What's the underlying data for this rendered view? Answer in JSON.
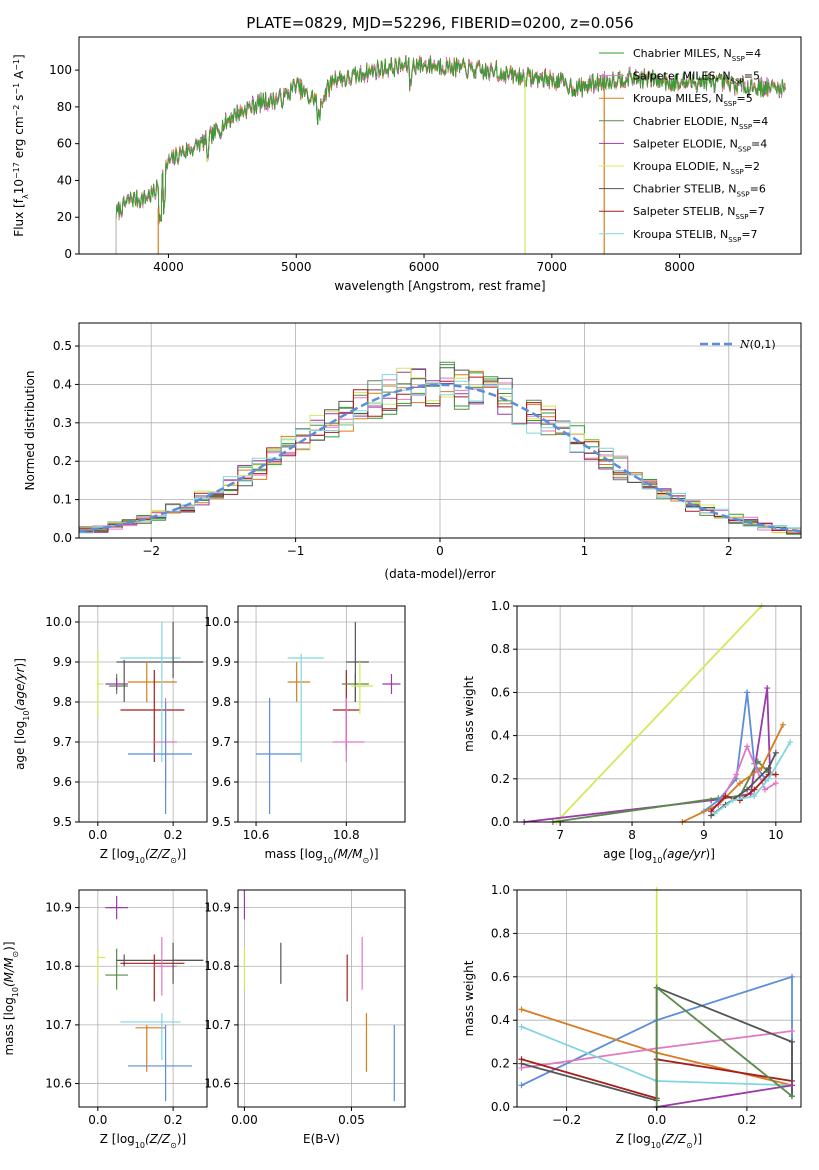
{
  "figure": {
    "title": "PLATE=0829, MJD=52296, FIBERID=0200, z=0.056"
  },
  "colors": {
    "chabrier_miles": "#2ca02c",
    "salpeter_miles": "#e377c2",
    "kroupa_miles": "#d97c1f",
    "chabrier_elodie": "#5a8a4a",
    "salpeter_elodie": "#9b3aa9",
    "kroupa_elodie": "#d4e85c",
    "chabrier_stelib": "#555555",
    "salpeter_stelib": "#a51f1f",
    "kroupa_stelib": "#7fd6e0",
    "blue": "#5b8ddb",
    "normal_curve": "#5b8ddb"
  },
  "chart_data": [
    {
      "id": "spectrum",
      "type": "line",
      "title": "PLATE=0829, MJD=52296, FIBERID=0200, z=0.056",
      "xlabel": "wavelength [Angstrom, rest frame]",
      "ylabel": "Flux [f_λ 10^-17 erg cm^-2 s^-1 A^-1]",
      "xlim": [
        3300,
        8950
      ],
      "ylim": [
        0,
        118
      ],
      "xticks": [
        4000,
        5000,
        6000,
        7000,
        8000
      ],
      "yticks": [
        0,
        20,
        40,
        60,
        80,
        100
      ],
      "grid": false,
      "legend_position": "top-right",
      "continuum": {
        "x": [
          3590,
          3700,
          3800,
          3900,
          4000,
          4100,
          4200,
          4300,
          4400,
          4500,
          4700,
          4900,
          5000,
          5100,
          5200,
          5300,
          5400,
          5600,
          5800,
          6000,
          6200,
          6400,
          6600,
          6800,
          7000,
          7200,
          7400,
          7600,
          7800,
          8000,
          8200,
          8400,
          8600,
          8830
        ],
        "y": [
          22,
          30,
          30,
          34,
          50,
          55,
          58,
          62,
          68,
          75,
          82,
          85,
          92,
          85,
          84,
          96,
          95,
          100,
          102,
          103,
          102,
          100,
          98,
          96,
          95,
          90,
          94,
          96,
          95,
          93,
          94,
          92,
          91,
          90
        ]
      },
      "series": [
        {
          "name": "Chabrier MILES, N_SSP=4"
        },
        {
          "name": "Salpeter MILES, N_SSP=5"
        },
        {
          "name": "Kroupa MILES, N_SSP=5"
        },
        {
          "name": "Chabrier ELODIE, N_SSP=4"
        },
        {
          "name": "Salpeter ELODIE, N_SSP=4"
        },
        {
          "name": "Kroupa ELODIE, N_SSP=2"
        },
        {
          "name": "Chabrier STELIB, N_SSP=6"
        },
        {
          "name": "Salpeter STELIB, N_SSP=7"
        },
        {
          "name": "Kroupa STELIB, N_SSP=7"
        }
      ]
    },
    {
      "id": "residuals",
      "type": "line",
      "xlabel": "(data-model)/error",
      "ylabel": "Normed distribution",
      "xlim": [
        -2.5,
        2.5
      ],
      "ylim": [
        0,
        0.56
      ],
      "xticks": [
        -2,
        -1,
        0,
        1,
        2
      ],
      "yticks": [
        0.0,
        0.1,
        0.2,
        0.3,
        0.4,
        0.5
      ],
      "grid": true,
      "legend": "N(0,1)",
      "legend_position": "top-right",
      "bin_width": 0.1
    },
    {
      "id": "age_vs_z",
      "type": "scatter",
      "xlabel": "Z [log10(Z/Z☉)]",
      "ylabel": "age [log10(age/yr)]",
      "xlim": [
        -0.05,
        0.29
      ],
      "ylim": [
        9.5,
        10.04
      ],
      "xticks": [
        0.0,
        0.2
      ],
      "yticks": [
        9.5,
        9.6,
        9.7,
        9.8,
        9.9,
        10.0
      ],
      "grid": true,
      "points": [
        {
          "x": 0.0,
          "y": 9.845,
          "ex": [
            0.0,
            0.015
          ],
          "ey": [
            9.76,
            9.93
          ],
          "c": "kroupa_elodie"
        },
        {
          "x": 0.05,
          "y": 9.84,
          "ex": [
            0.03,
            0.08
          ],
          "ey": [
            9.82,
            9.87
          ],
          "c": "chabrier_elodie"
        },
        {
          "x": 0.05,
          "y": 9.845,
          "ex": [
            0.02,
            0.08
          ],
          "ey": [
            9.83,
            9.86
          ],
          "c": "salpeter_elodie"
        },
        {
          "x": 0.07,
          "y": 9.9,
          "ex": [
            0.05,
            0.28
          ],
          "ey": [
            9.8,
            9.905
          ],
          "c": "chabrier_stelib"
        },
        {
          "x": 0.13,
          "y": 9.85,
          "ex": [
            0.08,
            0.21
          ],
          "ey": [
            9.8,
            9.9
          ],
          "c": "kroupa_miles"
        },
        {
          "x": 0.15,
          "y": 9.78,
          "ex": [
            0.06,
            0.23
          ],
          "ey": [
            9.65,
            9.88
          ],
          "c": "salpeter_stelib"
        },
        {
          "x": 0.17,
          "y": 9.91,
          "ex": [
            0.06,
            0.22
          ],
          "ey": [
            9.65,
            10.0
          ],
          "c": "kroupa_stelib"
        },
        {
          "x": 0.18,
          "y": 9.7,
          "ex": [
            0.15,
            0.21
          ],
          "ey": [
            9.58,
            9.81
          ],
          "c": "salpeter_miles"
        },
        {
          "x": 0.18,
          "y": 9.67,
          "ex": [
            0.08,
            0.25
          ],
          "ey": [
            9.52,
            9.8
          ],
          "c": "blue"
        },
        {
          "x": 0.2,
          "y": 9.9,
          "ex": [
            0.2,
            0.28
          ],
          "ey": [
            9.86,
            10.0
          ],
          "c": "chabrier_stelib"
        }
      ]
    },
    {
      "id": "age_vs_mass",
      "type": "scatter",
      "xlabel": "mass [log10(M/M☉)]",
      "ylabel": "",
      "xlim": [
        10.56,
        10.93
      ],
      "ylim": [
        9.5,
        10.04
      ],
      "xticks": [
        10.6,
        10.8
      ],
      "yticks": [
        9.5,
        9.6,
        9.7,
        9.8,
        9.9,
        10.0
      ],
      "grid": true,
      "points": [
        {
          "x": 10.63,
          "y": 9.67,
          "ex": [
            10.6,
            10.7
          ],
          "ey": [
            9.52,
            9.81
          ],
          "c": "blue"
        },
        {
          "x": 10.69,
          "y": 9.85,
          "ex": [
            10.67,
            10.72
          ],
          "ey": [
            9.8,
            9.9
          ],
          "c": "kroupa_miles"
        },
        {
          "x": 10.7,
          "y": 9.91,
          "ex": [
            10.67,
            10.75
          ],
          "ey": [
            9.65,
            9.92
          ],
          "c": "kroupa_stelib"
        },
        {
          "x": 10.8,
          "y": 9.78,
          "ex": [
            10.77,
            10.83
          ],
          "ey": [
            9.68,
            9.88
          ],
          "c": "salpeter_stelib"
        },
        {
          "x": 10.8,
          "y": 9.7,
          "ex": [
            10.77,
            10.84
          ],
          "ey": [
            9.65,
            9.81
          ],
          "c": "salpeter_miles"
        },
        {
          "x": 10.82,
          "y": 9.845,
          "ex": [
            10.79,
            10.85
          ],
          "ey": [
            9.8,
            9.87
          ],
          "c": "chabrier_elodie"
        },
        {
          "x": 10.82,
          "y": 9.9,
          "ex": [
            10.8,
            10.85
          ],
          "ey": [
            9.8,
            10.0
          ],
          "c": "chabrier_stelib"
        },
        {
          "x": 10.83,
          "y": 9.84,
          "ex": [
            10.81,
            10.86
          ],
          "ey": [
            9.77,
            9.9
          ],
          "c": "kroupa_elodie"
        },
        {
          "x": 10.9,
          "y": 9.845,
          "ex": [
            10.88,
            10.92
          ],
          "ey": [
            9.82,
            9.87
          ],
          "c": "salpeter_elodie"
        }
      ]
    },
    {
      "id": "massweight_vs_age",
      "type": "line",
      "xlabel": "age [log10(age/yr)]",
      "ylabel": "mass weight",
      "xlim": [
        6.4,
        10.35
      ],
      "ylim": [
        0,
        1.0
      ],
      "xticks": [
        7,
        8,
        9,
        10
      ],
      "yticks": [
        0.0,
        0.2,
        0.4,
        0.6,
        0.8,
        1.0
      ],
      "grid": true,
      "series": [
        {
          "c": "kroupa_elodie",
          "x": [
            6.95,
            9.8
          ],
          "y": [
            0.0,
            1.0
          ]
        },
        {
          "c": "salpeter_elodie",
          "x": [
            6.5,
            9.1,
            9.65,
            9.88,
            9.92
          ],
          "y": [
            0.0,
            0.1,
            0.13,
            0.62,
            0.22
          ]
        },
        {
          "c": "chabrier_elodie",
          "x": [
            6.9,
            9.2,
            9.5,
            9.75,
            9.9
          ],
          "y": [
            0.0,
            0.11,
            0.12,
            0.28,
            0.23
          ]
        },
        {
          "c": "blue",
          "x": [
            9.0,
            9.2,
            9.45,
            9.6,
            9.7,
            9.85
          ],
          "y": [
            0.05,
            0.1,
            0.2,
            0.6,
            0.27,
            0.2
          ]
        },
        {
          "c": "kroupa_miles",
          "x": [
            8.7,
            9.2,
            9.5,
            9.8,
            10.1
          ],
          "y": [
            0.0,
            0.08,
            0.18,
            0.25,
            0.45
          ]
        },
        {
          "c": "salpeter_miles",
          "x": [
            9.2,
            9.45,
            9.6,
            9.85,
            10.0
          ],
          "y": [
            0.08,
            0.22,
            0.35,
            0.15,
            0.18
          ]
        },
        {
          "c": "chabrier_stelib",
          "x": [
            9.1,
            9.3,
            9.6,
            9.9,
            10.0
          ],
          "y": [
            0.03,
            0.08,
            0.15,
            0.25,
            0.32
          ]
        },
        {
          "c": "salpeter_stelib",
          "x": [
            9.1,
            9.3,
            9.5,
            9.7,
            9.9,
            10.0
          ],
          "y": [
            0.05,
            0.12,
            0.1,
            0.15,
            0.22,
            0.22
          ]
        },
        {
          "c": "kroupa_stelib",
          "x": [
            9.15,
            9.4,
            9.7,
            9.9,
            10.2
          ],
          "y": [
            0.04,
            0.1,
            0.12,
            0.2,
            0.37
          ]
        }
      ]
    },
    {
      "id": "mass_vs_z",
      "type": "scatter",
      "xlabel": "Z [log10(Z/Z☉)]",
      "ylabel": "mass [log10(M/M☉)]",
      "xlim": [
        -0.05,
        0.29
      ],
      "ylim": [
        10.56,
        10.93
      ],
      "xticks": [
        0.0,
        0.2
      ],
      "yticks": [
        10.6,
        10.7,
        10.8,
        10.9
      ],
      "grid": true,
      "points": [
        {
          "x": 0.0,
          "y": 10.815,
          "ex": [
            0.0,
            0.02
          ],
          "ey": [
            10.77,
            10.83
          ],
          "c": "kroupa_elodie"
        },
        {
          "x": 0.05,
          "y": 10.9,
          "ex": [
            0.02,
            0.08
          ],
          "ey": [
            10.88,
            10.92
          ],
          "c": "salpeter_elodie"
        },
        {
          "x": 0.05,
          "y": 10.785,
          "ex": [
            0.02,
            0.08
          ],
          "ey": [
            10.76,
            10.83
          ],
          "c": "chabrier_elodie"
        },
        {
          "x": 0.07,
          "y": 10.81,
          "ex": [
            0.05,
            0.28
          ],
          "ey": [
            10.8,
            10.82
          ],
          "c": "chabrier_stelib"
        },
        {
          "x": 0.13,
          "y": 10.695,
          "ex": [
            0.1,
            0.18
          ],
          "ey": [
            10.62,
            10.7
          ],
          "c": "kroupa_miles"
        },
        {
          "x": 0.15,
          "y": 10.805,
          "ex": [
            0.06,
            0.23
          ],
          "ey": [
            10.74,
            10.82
          ],
          "c": "salpeter_stelib"
        },
        {
          "x": 0.17,
          "y": 10.705,
          "ex": [
            0.06,
            0.22
          ],
          "ey": [
            10.64,
            10.72
          ],
          "c": "kroupa_stelib"
        },
        {
          "x": 0.17,
          "y": 10.8,
          "ex": [
            0.15,
            0.21
          ],
          "ey": [
            10.75,
            10.85
          ],
          "c": "salpeter_miles"
        },
        {
          "x": 0.18,
          "y": 10.63,
          "ex": [
            0.08,
            0.25
          ],
          "ey": [
            10.57,
            10.7
          ],
          "c": "blue"
        },
        {
          "x": 0.2,
          "y": 10.81,
          "ex": [
            0.2,
            0.28
          ],
          "ey": [
            10.77,
            10.84
          ],
          "c": "chabrier_stelib"
        }
      ]
    },
    {
      "id": "mass_vs_ebv",
      "type": "scatter",
      "xlabel": "E(B-V)",
      "ylabel": "",
      "xlim": [
        -0.003,
        0.075
      ],
      "ylim": [
        10.56,
        10.93
      ],
      "xticks": [
        0.0,
        0.05
      ],
      "yticks": [
        10.6,
        10.7,
        10.8,
        10.9
      ],
      "grid": true,
      "points": [
        {
          "x": 0.0,
          "y": 10.9,
          "ey": [
            10.88,
            10.93
          ],
          "c": "salpeter_elodie"
        },
        {
          "x": 0.0,
          "y": 10.8,
          "ey": [
            10.76,
            10.83
          ],
          "c": "kroupa_elodie"
        },
        {
          "x": 0.017,
          "y": 10.8,
          "ey": [
            10.77,
            10.84
          ],
          "c": "chabrier_stelib"
        },
        {
          "x": 0.048,
          "y": 10.78,
          "ey": [
            10.74,
            10.82
          ],
          "c": "salpeter_stelib"
        },
        {
          "x": 0.055,
          "y": 10.8,
          "ey": [
            10.76,
            10.85
          ],
          "c": "salpeter_miles"
        },
        {
          "x": 0.057,
          "y": 10.67,
          "ey": [
            10.62,
            10.72
          ],
          "c": "kroupa_miles"
        },
        {
          "x": 0.07,
          "y": 10.63,
          "ey": [
            10.57,
            10.7
          ],
          "c": "blue"
        }
      ]
    },
    {
      "id": "massweight_vs_z",
      "type": "line",
      "xlabel": "Z [log10(Z/Z☉)]",
      "ylabel": "mass weight",
      "xlim": [
        -0.31,
        0.32
      ],
      "ylim": [
        0,
        1.0
      ],
      "xticks": [
        -0.2,
        0.0,
        0.2
      ],
      "yticks": [
        0.0,
        0.2,
        0.4,
        0.6,
        0.8,
        1.0
      ],
      "grid": true,
      "series": [
        {
          "c": "kroupa_elodie",
          "x": [
            0.0,
            0.0
          ],
          "y": [
            0.0,
            1.0
          ]
        },
        {
          "c": "blue",
          "x": [
            -0.3,
            0.0,
            0.3,
            0.3
          ],
          "y": [
            0.1,
            0.4,
            0.6,
            0.05
          ]
        },
        {
          "c": "kroupa_miles",
          "x": [
            -0.3,
            0.0,
            0.3
          ],
          "y": [
            0.45,
            0.25,
            0.1
          ]
        },
        {
          "c": "salpeter_miles",
          "x": [
            -0.3,
            0.0,
            0.3
          ],
          "y": [
            0.18,
            0.27,
            0.35
          ]
        },
        {
          "c": "kroupa_stelib",
          "x": [
            -0.3,
            0.0,
            0.3
          ],
          "y": [
            0.37,
            0.12,
            0.1
          ]
        },
        {
          "c": "salpeter_stelib",
          "x": [
            -0.3,
            0.0,
            0.0,
            0.3
          ],
          "y": [
            0.22,
            0.04,
            0.22,
            0.12
          ]
        },
        {
          "c": "chabrier_stelib",
          "x": [
            -0.3,
            0.0,
            0.0,
            0.3,
            0.3
          ],
          "y": [
            0.2,
            0.03,
            0.55,
            0.3,
            0.05
          ]
        },
        {
          "c": "salpeter_elodie",
          "x": [
            0.0,
            0.3
          ],
          "y": [
            0.0,
            0.1
          ]
        },
        {
          "c": "chabrier_elodie",
          "x": [
            0.0,
            0.0,
            0.3
          ],
          "y": [
            0.0,
            0.55,
            0.05
          ]
        }
      ]
    }
  ]
}
